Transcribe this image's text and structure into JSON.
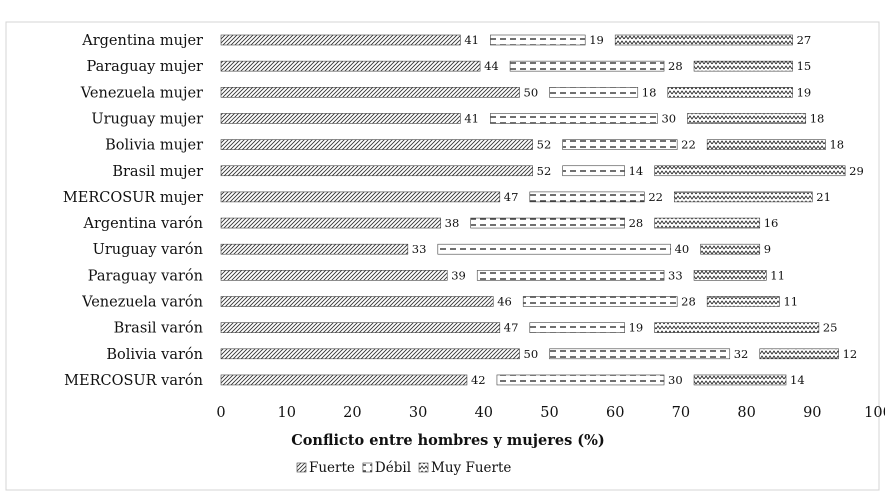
{
  "chart_data": {
    "type": "bar",
    "orientation": "horizontal",
    "stacked": true,
    "xlabel": "Conflicto entre hombres y mujeres (%)",
    "xlim": [
      0,
      100
    ],
    "xticks": [
      0,
      10,
      20,
      30,
      40,
      50,
      60,
      70,
      80,
      90,
      100
    ],
    "grid": false,
    "legend_position": "bottom",
    "categories": [
      "Argentina mujer",
      "Paraguay mujer",
      "Venezuela mujer",
      "Uruguay mujer",
      "Bolivia mujer",
      "Brasil mujer",
      "MERCOSUR mujer",
      "Argentina varón",
      "Uruguay varón",
      "Paraguay varón",
      "Venezuela varón",
      "Brasil varón",
      "Bolivia varón",
      "MERCOSUR varón"
    ],
    "series": [
      {
        "name": "Fuerte",
        "pattern": "hatch-dense",
        "values": [
          41,
          44,
          50,
          41,
          52,
          52,
          47,
          38,
          33,
          39,
          46,
          47,
          50,
          42
        ]
      },
      {
        "name": "Débil",
        "pattern": "dashes",
        "values": [
          19,
          28,
          18,
          30,
          22,
          14,
          22,
          28,
          40,
          33,
          28,
          19,
          32,
          30
        ]
      },
      {
        "name": "Muy Fuerte",
        "pattern": "zigzag",
        "values": [
          27,
          15,
          19,
          18,
          18,
          29,
          21,
          16,
          9,
          11,
          11,
          25,
          12,
          14
        ]
      }
    ]
  }
}
